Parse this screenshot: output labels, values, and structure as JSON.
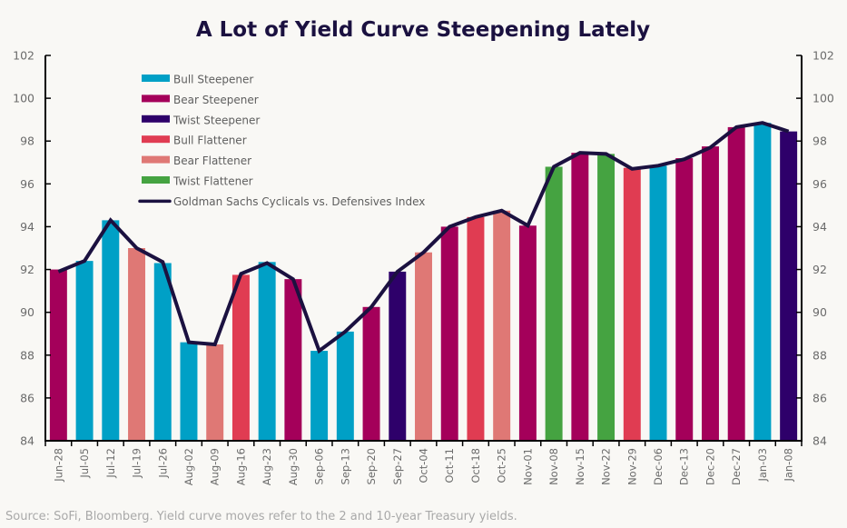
{
  "chart_data": {
    "type": "bar",
    "title": "A Lot of Yield Curve Steepening Lately",
    "xlabel": "",
    "ylabel": "",
    "ylim": [
      84,
      102
    ],
    "yticks": [
      84,
      86,
      88,
      90,
      92,
      94,
      96,
      98,
      100,
      102
    ],
    "secondary_yticks": [
      84,
      86,
      88,
      90,
      92,
      94,
      96,
      98,
      100,
      102
    ],
    "grid": false,
    "legend_position": "top-left",
    "categories": [
      "Jun-28",
      "Jul-05",
      "Jul-12",
      "Jul-19",
      "Jul-26",
      "Aug-02",
      "Aug-09",
      "Aug-16",
      "Aug-23",
      "Aug-30",
      "Sep-06",
      "Sep-13",
      "Sep-20",
      "Sep-27",
      "Oct-04",
      "Oct-11",
      "Oct-18",
      "Oct-25",
      "Nov-01",
      "Nov-08",
      "Nov-15",
      "Nov-22",
      "Nov-29",
      "Dec-06",
      "Dec-13",
      "Dec-20",
      "Dec-27",
      "Jan-03",
      "Jan-08"
    ],
    "bar_values": [
      92.0,
      92.4,
      94.3,
      93.0,
      92.3,
      88.6,
      88.5,
      91.75,
      92.35,
      91.55,
      88.2,
      89.1,
      90.25,
      91.9,
      92.8,
      94.0,
      94.45,
      94.75,
      94.05,
      96.8,
      97.45,
      97.4,
      96.75,
      96.85,
      97.2,
      97.75,
      98.65,
      98.85,
      98.45
    ],
    "bar_types": [
      "Bear Steepener",
      "Bull Steepener",
      "Bull Steepener",
      "Bear Flattener",
      "Bull Steepener",
      "Bull Steepener",
      "Bear Flattener",
      "Bull Flattener",
      "Bull Steepener",
      "Bear Steepener",
      "Bull Steepener",
      "Bull Steepener",
      "Bear Steepener",
      "Twist Steepener",
      "Bear Flattener",
      "Bear Steepener",
      "Bull Flattener",
      "Bear Flattener",
      "Bear Steepener",
      "Twist Flattener",
      "Bear Steepener",
      "Twist Flattener",
      "Bull Flattener",
      "Bull Steepener",
      "Bear Steepener",
      "Bear Steepener",
      "Bear Steepener",
      "Bull Steepener",
      "Twist Steepener"
    ],
    "series": [
      {
        "name": "Goldman Sachs Cyclicals vs. Defensives Index",
        "type": "line",
        "color": "#1b1140",
        "values": [
          91.9,
          92.4,
          94.3,
          93.0,
          92.35,
          88.6,
          88.5,
          91.8,
          92.3,
          91.55,
          88.2,
          89.1,
          90.25,
          91.9,
          92.8,
          94.0,
          94.45,
          94.75,
          94.05,
          96.8,
          97.45,
          97.4,
          96.7,
          96.85,
          97.15,
          97.7,
          98.65,
          98.85,
          98.45
        ]
      }
    ],
    "legend": [
      {
        "label": "Bull Steepener",
        "color": "#00a0c6",
        "kind": "bar"
      },
      {
        "label": "Bear Steepener",
        "color": "#a4005a",
        "kind": "bar"
      },
      {
        "label": "Twist Steepener",
        "color": "#2e006a",
        "kind": "bar"
      },
      {
        "label": "Bull Flattener",
        "color": "#e03c52",
        "kind": "bar"
      },
      {
        "label": "Bear Flattener",
        "color": "#df7875",
        "kind": "bar"
      },
      {
        "label": "Twist Flattener",
        "color": "#45a341",
        "kind": "bar"
      },
      {
        "label": "Goldman Sachs Cyclicals vs. Defensives Index",
        "color": "#1b1140",
        "kind": "line"
      }
    ],
    "source_note": "Source: SoFi, Bloomberg. Yield curve moves refer to the 2 and 10-year Treasury yields."
  }
}
